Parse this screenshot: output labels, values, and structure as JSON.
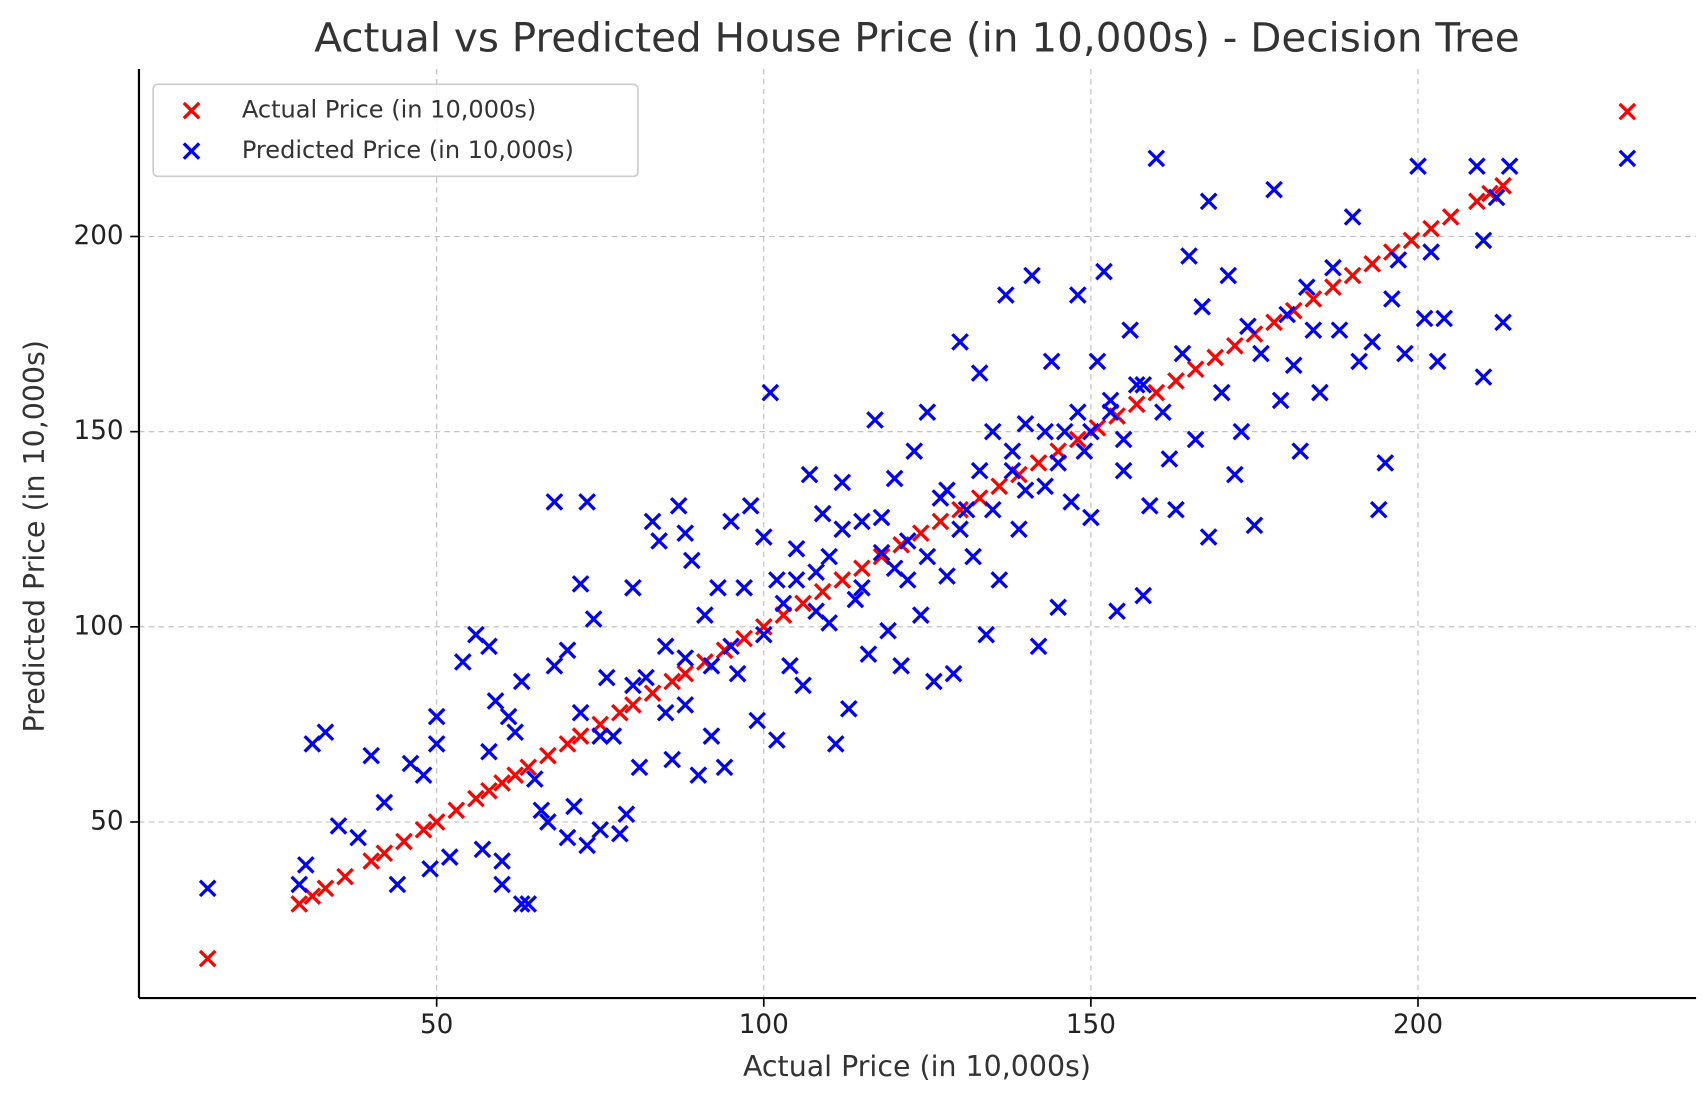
{
  "chart_data": {
    "type": "scatter",
    "title": "Actual vs Predicted House Price (in 10,000s) - Decision Tree",
    "x_label": "Actual Price (in 10,000s)",
    "y_label": "Predicted Price (in 10,000s)",
    "xlim": [
      4.5,
      242.5
    ],
    "ylim": [
      4.9,
      242.9
    ],
    "xticks": [
      50,
      100,
      150,
      200
    ],
    "yticks": [
      50,
      100,
      150,
      200
    ],
    "grid": true,
    "legend": "upper-left",
    "marker": "x",
    "series": [
      {
        "name": "Actual Price (in 10,000s)",
        "color": "#ff0000",
        "x": [
          15,
          29,
          31,
          33,
          36,
          40,
          42,
          45,
          48,
          50,
          53,
          56,
          58,
          60,
          62,
          64,
          67,
          70,
          72,
          75,
          78,
          80,
          83,
          86,
          88,
          91,
          94,
          97,
          100,
          103,
          106,
          109,
          112,
          115,
          118,
          121,
          124,
          127,
          130,
          133,
          136,
          139,
          142,
          145,
          148,
          151,
          154,
          157,
          160,
          163,
          166,
          169,
          172,
          175,
          178,
          181,
          184,
          187,
          190,
          193,
          196,
          199,
          202,
          205,
          209,
          211,
          213,
          232
        ],
        "values": [
          15,
          29,
          31,
          33,
          36,
          40,
          42,
          45,
          48,
          50,
          53,
          56,
          58,
          60,
          62,
          64,
          67,
          70,
          72,
          75,
          78,
          80,
          83,
          86,
          88,
          91,
          94,
          97,
          100,
          103,
          106,
          109,
          112,
          115,
          118,
          121,
          124,
          127,
          130,
          133,
          136,
          139,
          142,
          145,
          148,
          151,
          154,
          157,
          160,
          163,
          166,
          169,
          172,
          175,
          178,
          181,
          184,
          187,
          190,
          193,
          196,
          199,
          202,
          205,
          209,
          211,
          213,
          232
        ]
      },
      {
        "name": "Predicted Price (in 10,000s)",
        "color": "#0000ff",
        "x": [
          15,
          29,
          30,
          31,
          33,
          35,
          38,
          40,
          42,
          44,
          46,
          48,
          50,
          50,
          49,
          52,
          54,
          56,
          57,
          58,
          58,
          59,
          60,
          60,
          61,
          62,
          63,
          64,
          63,
          65,
          66,
          67,
          68,
          68,
          70,
          70,
          71,
          72,
          73,
          73,
          74,
          75,
          76,
          77,
          78,
          79,
          80,
          81,
          82,
          83,
          84,
          85,
          86,
          87,
          88,
          88,
          89,
          90,
          91,
          92,
          93,
          94,
          95,
          96,
          97,
          98,
          99,
          100,
          101,
          102,
          103,
          104,
          105,
          106,
          107,
          108,
          109,
          110,
          111,
          112,
          113,
          114,
          115,
          116,
          117,
          118,
          119,
          120,
          121,
          122,
          123,
          124,
          125,
          126,
          127,
          128,
          129,
          130,
          131,
          132,
          133,
          134,
          135,
          136,
          137,
          138,
          139,
          140,
          141,
          142,
          143,
          144,
          145,
          146,
          147,
          148,
          149,
          150,
          151,
          152,
          153,
          154,
          155,
          156,
          157,
          158,
          159,
          160,
          161,
          162,
          163,
          164,
          165,
          166,
          167,
          168,
          168,
          170,
          171,
          172,
          173,
          174,
          175,
          176,
          178,
          179,
          180,
          181,
          182,
          183,
          184,
          185,
          187,
          188,
          190,
          191,
          193,
          194,
          195,
          196,
          197,
          198,
          200,
          201,
          202,
          203,
          204,
          209,
          210,
          210,
          212,
          213,
          214,
          232,
          105,
          108,
          110,
          112,
          115,
          118,
          120,
          122,
          125,
          128,
          130,
          133,
          135,
          138,
          140,
          143,
          145,
          148,
          150,
          153,
          155,
          158,
          100,
          102,
          95,
          92,
          88,
          85,
          80,
          75,
          72
        ],
        "values": [
          33,
          34,
          39,
          70,
          73,
          49,
          46,
          67,
          55,
          34,
          65,
          62,
          77,
          70,
          38,
          41,
          91,
          98,
          43,
          95,
          68,
          81,
          34,
          40,
          77,
          73,
          29,
          29,
          86,
          61,
          53,
          50,
          132,
          90,
          94,
          46,
          54,
          111,
          132,
          44,
          102,
          48,
          87,
          72,
          47,
          52,
          110,
          64,
          87,
          127,
          122,
          95,
          66,
          131,
          124,
          80,
          117,
          62,
          103,
          72,
          110,
          64,
          127,
          88,
          110,
          131,
          76,
          123,
          160,
          71,
          106,
          90,
          120,
          85,
          139,
          114,
          129,
          101,
          70,
          137,
          79,
          107,
          127,
          93,
          153,
          119,
          99,
          138,
          90,
          112,
          145,
          103,
          155,
          86,
          133,
          113,
          88,
          173,
          130,
          118,
          165,
          98,
          150,
          112,
          185,
          140,
          125,
          152,
          190,
          95,
          136,
          168,
          105,
          150,
          132,
          185,
          145,
          128,
          168,
          191,
          155,
          104,
          140,
          176,
          162,
          108,
          131,
          220,
          155,
          143,
          130,
          170,
          195,
          148,
          182,
          209,
          123,
          160,
          190,
          139,
          150,
          177,
          126,
          170,
          212,
          158,
          180,
          167,
          145,
          187,
          176,
          160,
          192,
          176,
          205,
          168,
          173,
          130,
          142,
          184,
          194,
          170,
          218,
          179,
          196,
          168,
          179,
          218,
          199,
          164,
          210,
          178,
          218,
          220,
          112,
          104,
          118,
          125,
          110,
          128,
          115,
          122,
          118,
          135,
          125,
          140,
          130,
          145,
          135,
          150,
          142,
          155,
          150,
          158,
          148,
          162,
          98,
          112,
          95,
          90,
          92,
          78,
          85,
          72,
          78
        ]
      }
    ]
  }
}
